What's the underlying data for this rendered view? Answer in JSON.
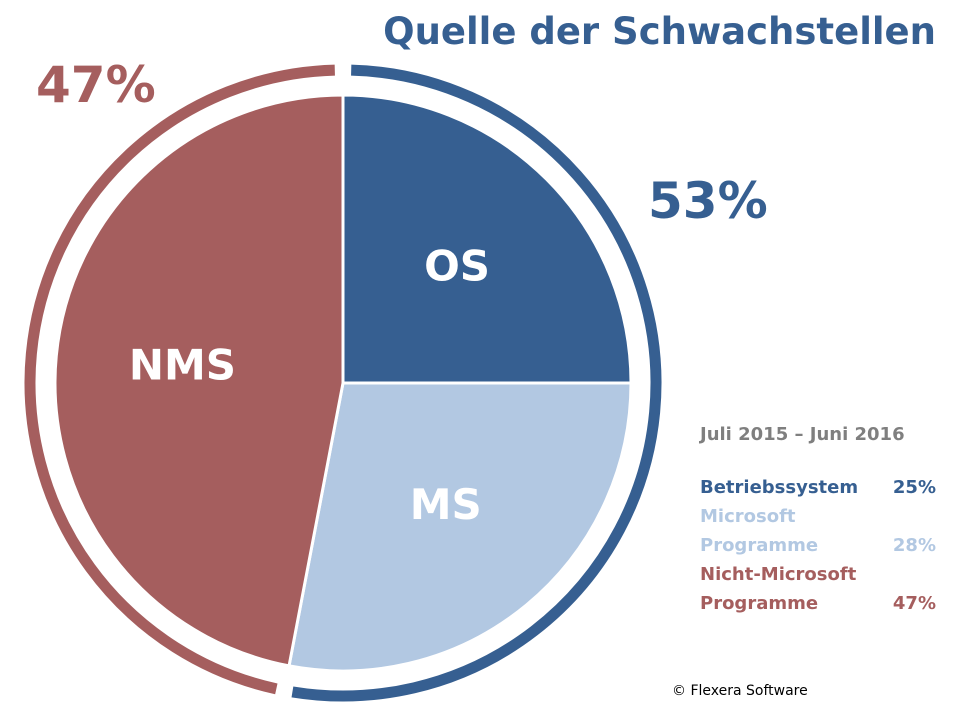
{
  "chart_data": {
    "type": "pie",
    "title": "Quelle der Schwachstellen",
    "period": "Juli 2015 – Juni 2016",
    "slices": [
      {
        "label": "OS",
        "name": "Betriebssystem",
        "value": 25,
        "value_label": "25%",
        "color": "#365f91"
      },
      {
        "label": "MS",
        "name": "Microsoft Programme",
        "value": 28,
        "value_label": "28%",
        "color": "#b2c8e2"
      },
      {
        "label": "NMS",
        "name": "Nicht-Microsoft Programme",
        "value": 47,
        "value_label": "47%",
        "color": "#a55e5e"
      }
    ],
    "groups": [
      {
        "value": 53,
        "label": "53%",
        "color": "#365f91",
        "slices": [
          "OS",
          "MS"
        ]
      },
      {
        "value": 47,
        "label": "47%",
        "color": "#a55e5e",
        "slices": [
          "NMS"
        ]
      }
    ]
  },
  "legend": {
    "period": "Juli 2015 – Juni 2016",
    "items": [
      {
        "label": "Betriebssystem",
        "value": "25%"
      },
      {
        "label": "Microsoft Programme",
        "value": "28%"
      },
      {
        "label": "Nicht-Microsoft Programme",
        "value": "47%"
      }
    ]
  },
  "copyright": "© Flexera Software"
}
